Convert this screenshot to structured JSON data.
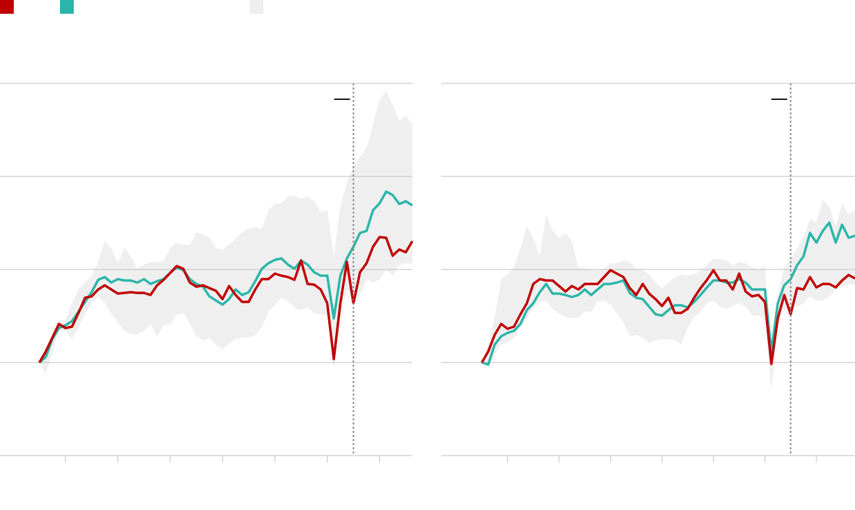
{
  "chart_data": [
    {
      "type": "line",
      "x": [
        6,
        7,
        8,
        9,
        10,
        11,
        12,
        13,
        14,
        15,
        16,
        17,
        18,
        19,
        20,
        21,
        22,
        23,
        24,
        25,
        26,
        27,
        28,
        29,
        30,
        31,
        32,
        33,
        34,
        35,
        36,
        37,
        38,
        39,
        40,
        41,
        42,
        43,
        44,
        45,
        46,
        47,
        48,
        49,
        50,
        51,
        52,
        53,
        54,
        55,
        56,
        57,
        58,
        59,
        60,
        61,
        62,
        63
      ],
      "xlim": [
        0,
        63
      ],
      "xticks": [
        10,
        18,
        26,
        34,
        42,
        50,
        58
      ],
      "ylim": [
        -135,
        405
      ],
      "yticks": [
        -135,
        0,
        135,
        270,
        405
      ],
      "grid": true,
      "vline": 54,
      "band": {
        "color": "#efefef",
        "upper": [
          0,
          8,
          34,
          56,
          61,
          86,
          106,
          116,
          126,
          146,
          176,
          166,
          144,
          166,
          154,
          136,
          142,
          146,
          146,
          148,
          166,
          174,
          171,
          171,
          189,
          186,
          181,
          166,
          164,
          171,
          180,
          189,
          194,
          196,
          194,
          221,
          230,
          231,
          241,
          242,
          238,
          241,
          234,
          218,
          221,
          154,
          226,
          261,
          286,
          298,
          311,
          346,
          381,
          394,
          374,
          351,
          358,
          346
        ],
        "lower": [
          0,
          -16,
          16,
          46,
          46,
          34,
          51,
          71,
          86,
          96,
          86,
          71,
          58,
          46,
          41,
          41,
          46,
          56,
          38,
          54,
          56,
          69,
          72,
          56,
          38,
          32,
          36,
          26,
          19,
          28,
          34,
          36,
          36,
          40,
          51,
          74,
          83,
          94,
          89,
          80,
          76,
          80,
          72,
          70,
          68,
          -9,
          64,
          106,
          86,
          98,
          121,
          116,
          121,
          134,
          126,
          141,
          144,
          143
        ]
      },
      "series": [
        {
          "color": "#2bb5a8",
          "values": [
            0,
            8,
            34,
            50,
            54,
            60,
            74,
            88,
            102,
            120,
            124,
            116,
            121,
            119,
            119,
            116,
            121,
            114,
            118,
            121,
            130,
            138,
            134,
            121,
            114,
            110,
            96,
            90,
            84,
            92,
            106,
            98,
            102,
            118,
            136,
            144,
            149,
            151,
            142,
            136,
            148,
            142,
            131,
            126,
            126,
            64,
            126,
            151,
            168,
            188,
            191,
            221,
            231,
            248,
            243,
            230,
            234,
            228
          ]
        },
        {
          "color": "#c00000",
          "values": [
            0,
            16,
            36,
            56,
            50,
            52,
            72,
            94,
            96,
            106,
            112,
            106,
            100,
            101,
            102,
            101,
            101,
            98,
            112,
            120,
            130,
            140,
            136,
            116,
            110,
            112,
            108,
            104,
            92,
            111,
            98,
            88,
            88,
            106,
            121,
            121,
            129,
            126,
            124,
            120,
            148,
            114,
            113,
            106,
            86,
            5,
            86,
            146,
            86,
            131,
            144,
            168,
            182,
            181,
            155,
            164,
            160,
            176
          ]
        }
      ]
    },
    {
      "type": "line",
      "x": [
        6,
        7,
        8,
        9,
        10,
        11,
        12,
        13,
        14,
        15,
        16,
        17,
        18,
        19,
        20,
        21,
        22,
        23,
        24,
        25,
        26,
        27,
        28,
        29,
        30,
        31,
        32,
        33,
        34,
        35,
        36,
        37,
        38,
        39,
        40,
        41,
        42,
        43,
        44,
        45,
        46,
        47,
        48,
        49,
        50,
        51,
        52,
        53,
        54,
        55,
        56,
        57,
        58,
        59,
        60,
        61,
        62,
        63,
        64
      ],
      "xlim": [
        -0.3,
        64
      ],
      "xticks": [
        10,
        18,
        26,
        34,
        42,
        50,
        58
      ],
      "ylim": [
        -135,
        405
      ],
      "yticks": [
        -135,
        0,
        135,
        270,
        405
      ],
      "grid": true,
      "vline": 54,
      "band": {
        "color": "#efefef",
        "upper": [
          0,
          26,
          66,
          121,
          128,
          138,
          166,
          198,
          181,
          154,
          214,
          191,
          181,
          188,
          176,
          138,
          136,
          134,
          134,
          136,
          144,
          144,
          148,
          146,
          136,
          134,
          128,
          116,
          108,
          116,
          123,
          128,
          126,
          128,
          134,
          142,
          151,
          150,
          148,
          141,
          146,
          144,
          138,
          134,
          141,
          4,
          96,
          138,
          151,
          166,
          181,
          208,
          204,
          236,
          226,
          198,
          230,
          216,
          221
        ],
        "lower": [
          0,
          -6,
          11,
          26,
          29,
          36,
          51,
          66,
          78,
          88,
          90,
          78,
          71,
          66,
          64,
          66,
          74,
          73,
          89,
          90,
          84,
          71,
          58,
          38,
          40,
          36,
          28,
          32,
          34,
          33,
          33,
          26,
          51,
          66,
          74,
          86,
          90,
          81,
          78,
          82,
          86,
          81,
          68,
          68,
          61,
          -42,
          51,
          78,
          78,
          81,
          86,
          96,
          90,
          90,
          96,
          106,
          110,
          114,
          112
        ]
      },
      "series": [
        {
          "color": "#2bb5a8",
          "values": [
            0,
            -3,
            26,
            38,
            43,
            46,
            56,
            76,
            86,
            102,
            114,
            100,
            100,
            98,
            95,
            98,
            106,
            98,
            106,
            114,
            114,
            116,
            119,
            101,
            94,
            92,
            81,
            70,
            68,
            76,
            83,
            83,
            80,
            88,
            98,
            109,
            119,
            119,
            116,
            116,
            121,
            116,
            106,
            106,
            106,
            16,
            86,
            112,
            121,
            141,
            154,
            188,
            174,
            191,
            203,
            174,
            200,
            181,
            184
          ]
        },
        {
          "color": "#c00000",
          "values": [
            0,
            16,
            40,
            56,
            49,
            52,
            70,
            86,
            114,
            121,
            119,
            119,
            111,
            103,
            111,
            106,
            114,
            114,
            114,
            124,
            134,
            129,
            124,
            108,
            98,
            114,
            100,
            92,
            82,
            94,
            72,
            72,
            78,
            94,
            108,
            120,
            134,
            119,
            119,
            106,
            129,
            103,
            96,
            98,
            88,
            -2,
            64,
            98,
            70,
            108,
            106,
            124,
            109,
            114,
            114,
            109,
            119,
            127,
            122
          ]
        }
      ]
    }
  ]
}
